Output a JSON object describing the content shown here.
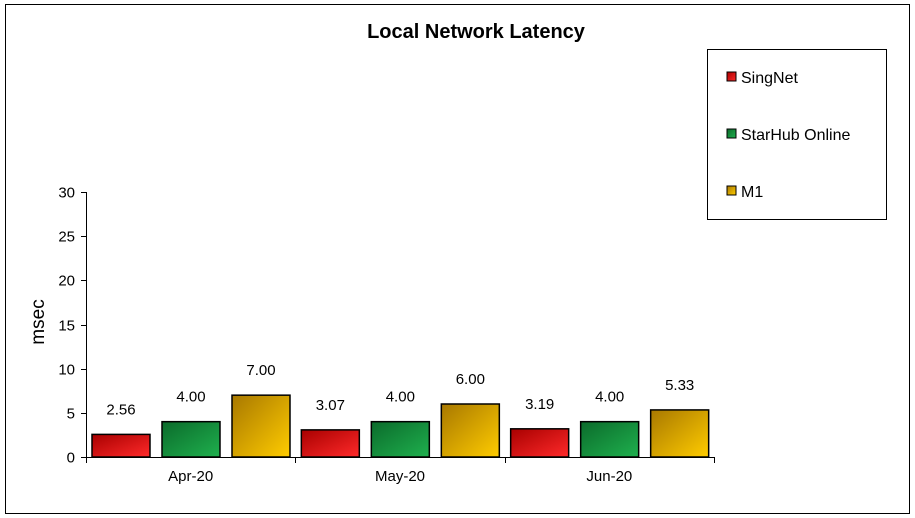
{
  "chart_data": {
    "type": "bar",
    "title": "Local Network Latency",
    "xlabel": "",
    "ylabel": "msec",
    "ylim": [
      0,
      30
    ],
    "yticks": [
      0,
      5,
      10,
      15,
      20,
      25,
      30
    ],
    "categories": [
      "Apr-20",
      "May-20",
      "Jun-20"
    ],
    "series": [
      {
        "name": "SingNet",
        "values": [
          2.56,
          3.07,
          3.19
        ],
        "labels": [
          "2.56",
          "3.07",
          "3.19"
        ],
        "color_light": "#ff2a2a",
        "color_dark": "#a80000"
      },
      {
        "name": "StarHub Online",
        "values": [
          4.0,
          4.0,
          4.0
        ],
        "labels": [
          "4.00",
          "4.00",
          "4.00"
        ],
        "color_light": "#1fb04e",
        "color_dark": "#0b6b2b"
      },
      {
        "name": "M1",
        "values": [
          7.0,
          6.0,
          5.33
        ],
        "labels": [
          "7.00",
          "6.00",
          "5.33"
        ],
        "color_light": "#ffcc00",
        "color_dark": "#a87800"
      }
    ],
    "grid": false,
    "legend_position": "top-right"
  }
}
